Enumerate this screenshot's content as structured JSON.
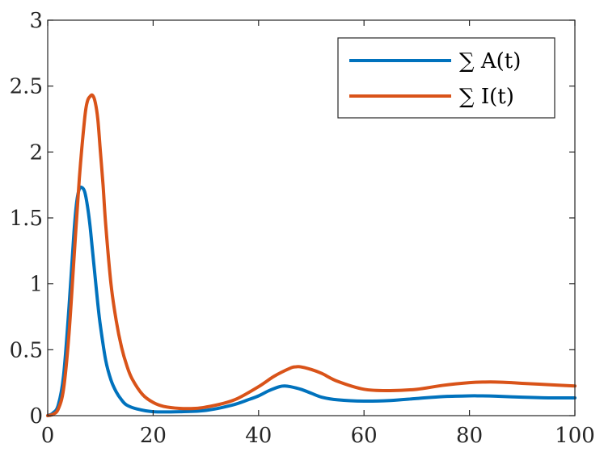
{
  "chart_data": {
    "type": "line",
    "title": "",
    "xlabel": "",
    "ylabel": "",
    "xlim": [
      0,
      100
    ],
    "ylim": [
      0,
      3
    ],
    "xticks": [
      0,
      20,
      40,
      60,
      80,
      100
    ],
    "xtick_labels": [
      "0",
      "20",
      "40",
      "60",
      "80",
      "100"
    ],
    "yticks": [
      0,
      0.5,
      1,
      1.5,
      2,
      2.5,
      3
    ],
    "ytick_labels": [
      "0",
      "0.5",
      "1",
      "1.5",
      "2",
      "2.5",
      "3"
    ],
    "grid": false,
    "legend_position": "top-right",
    "series": [
      {
        "name": "∑ A(t)",
        "color": "#0072BD",
        "x": [
          0,
          1,
          2,
          3,
          4,
          5,
          5.5,
          6,
          6.5,
          7,
          7.5,
          8,
          8.5,
          9,
          9.5,
          10,
          11,
          12,
          13,
          14,
          15,
          17,
          20,
          25,
          30,
          35,
          38,
          40,
          42,
          44,
          45,
          46,
          48,
          50,
          52,
          55,
          60,
          65,
          70,
          75,
          80,
          82,
          85,
          90,
          95,
          100
        ],
        "y": [
          0,
          0.02,
          0.08,
          0.3,
          0.8,
          1.4,
          1.62,
          1.72,
          1.73,
          1.7,
          1.6,
          1.45,
          1.25,
          1.05,
          0.85,
          0.68,
          0.42,
          0.27,
          0.18,
          0.12,
          0.08,
          0.05,
          0.03,
          0.03,
          0.04,
          0.08,
          0.12,
          0.15,
          0.19,
          0.22,
          0.225,
          0.22,
          0.2,
          0.17,
          0.14,
          0.12,
          0.11,
          0.115,
          0.13,
          0.145,
          0.15,
          0.15,
          0.148,
          0.14,
          0.135,
          0.135
        ]
      },
      {
        "name": "∑ I(t)",
        "color": "#D95319",
        "x": [
          0,
          1,
          2,
          3,
          4,
          5,
          6,
          7,
          7.5,
          8,
          8.5,
          9,
          9.5,
          10,
          10.5,
          11,
          12,
          13,
          14,
          15,
          16,
          18,
          20,
          22,
          25,
          28,
          30,
          33,
          36,
          40,
          43,
          46,
          47,
          48,
          50,
          52,
          55,
          60,
          65,
          70,
          75,
          80,
          83,
          85,
          88,
          90,
          95,
          100
        ],
        "y": [
          0,
          0.01,
          0.05,
          0.2,
          0.6,
          1.2,
          1.8,
          2.25,
          2.38,
          2.42,
          2.43,
          2.38,
          2.25,
          2.0,
          1.75,
          1.45,
          1.0,
          0.72,
          0.52,
          0.38,
          0.28,
          0.16,
          0.1,
          0.07,
          0.055,
          0.055,
          0.065,
          0.09,
          0.13,
          0.22,
          0.3,
          0.36,
          0.37,
          0.37,
          0.35,
          0.32,
          0.26,
          0.2,
          0.19,
          0.2,
          0.23,
          0.25,
          0.255,
          0.255,
          0.25,
          0.245,
          0.235,
          0.225
        ]
      }
    ]
  }
}
